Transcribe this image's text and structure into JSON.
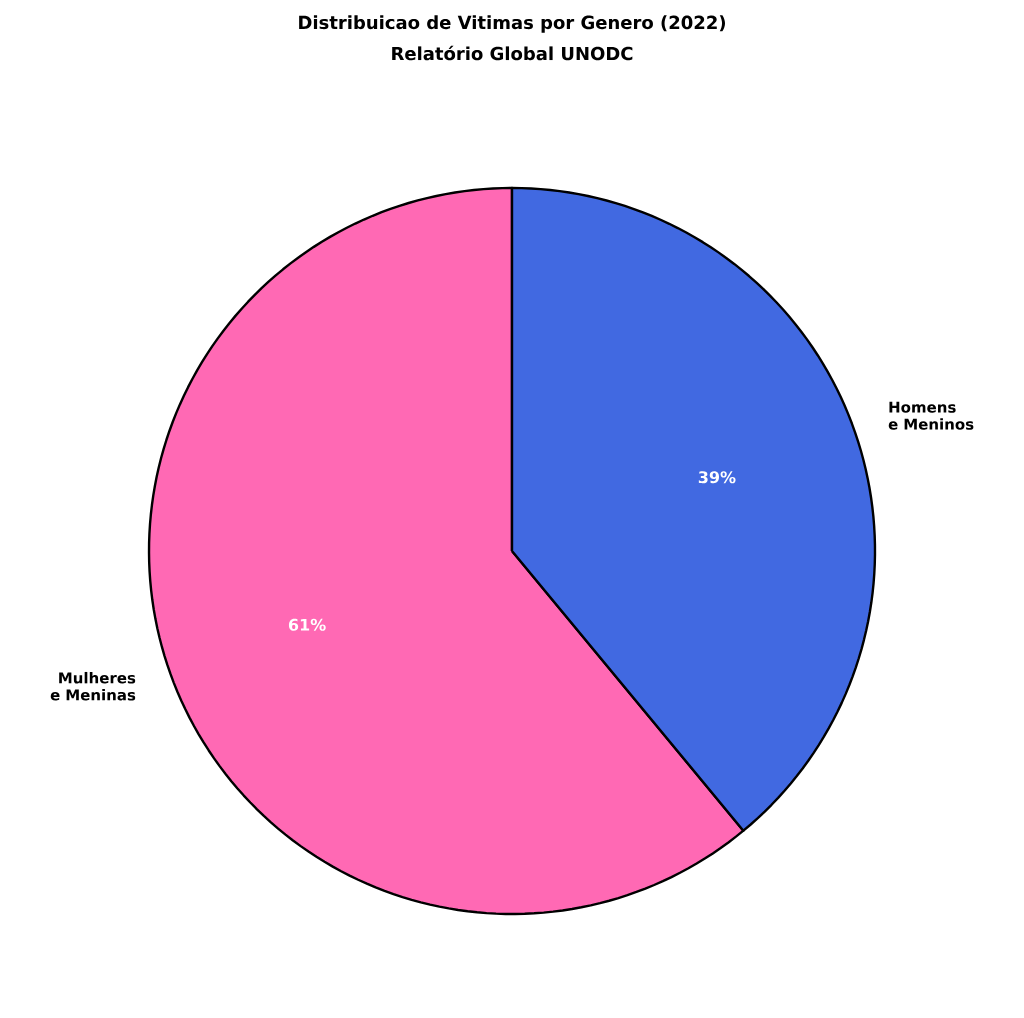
{
  "chart_data": {
    "type": "pie",
    "title": "Distribuicao de Vitimas por Genero (2022)",
    "subtitle": "Relatório Global UNODC",
    "categories": [
      "Mulheres e Meninas",
      "Homens e Meninos"
    ],
    "values": [
      61,
      39
    ],
    "colors": [
      "#ff69b4",
      "#4169e1"
    ],
    "value_labels": [
      "61%",
      "39%"
    ]
  }
}
